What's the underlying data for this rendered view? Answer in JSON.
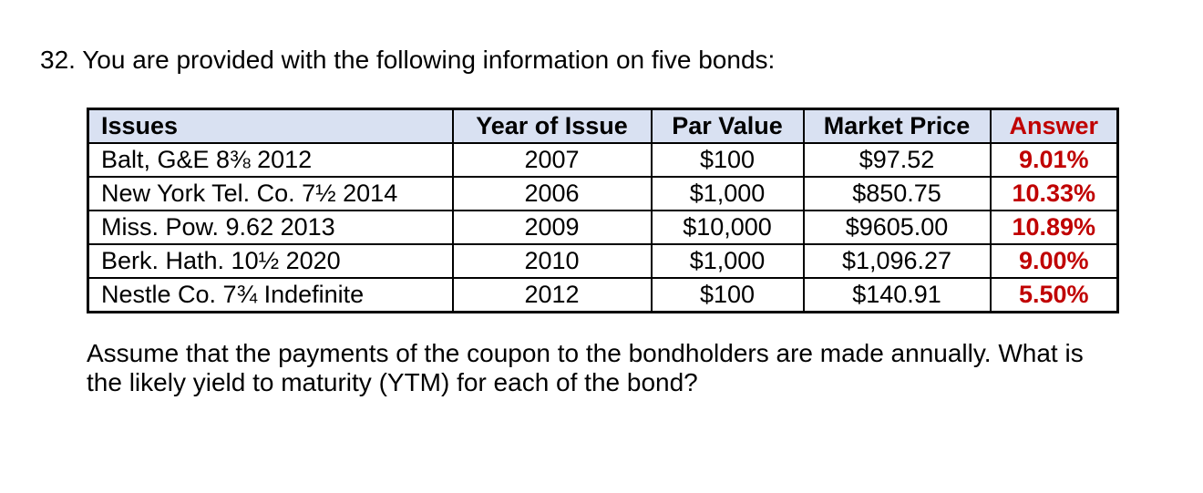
{
  "question": {
    "text": "32. You are provided with the following information on five bonds:"
  },
  "table": {
    "headers": [
      "Issues",
      "Year of Issue",
      "Par Value",
      "Market Price",
      "Answer"
    ],
    "rows": [
      {
        "issue": "Balt, G&E 8⅜ 2012",
        "year_of_issue": "2007",
        "par_value": "$100",
        "market_price": "$97.52",
        "answer": "9.01%"
      },
      {
        "issue": "New York Tel. Co. 7½ 2014",
        "year_of_issue": "2006",
        "par_value": "$1,000",
        "market_price": "$850.75",
        "answer": "10.33%"
      },
      {
        "issue": "Miss. Pow. 9.62 2013",
        "year_of_issue": "2009",
        "par_value": "$10,000",
        "market_price": "$9605.00",
        "answer": "10.89%"
      },
      {
        "issue": "Berk. Hath. 10½ 2020",
        "year_of_issue": "2010",
        "par_value": "$1,000",
        "market_price": "$1,096.27",
        "answer": "9.00%"
      },
      {
        "issue": "Nestle Co. 7¾ Indefinite",
        "year_of_issue": "2012",
        "par_value": "$100",
        "market_price": "$140.91",
        "answer": "5.50%"
      }
    ]
  },
  "paragraph": {
    "line1": "Assume that the payments of the coupon to the bondholders are made annually. What is",
    "line2": "the likely yield to maturity (YTM) for each of the bond?"
  },
  "colors": {
    "answer_red": "#c00000",
    "header_bg": "#d9e1f2",
    "border_black": "#000000",
    "text_black": "#000000"
  }
}
